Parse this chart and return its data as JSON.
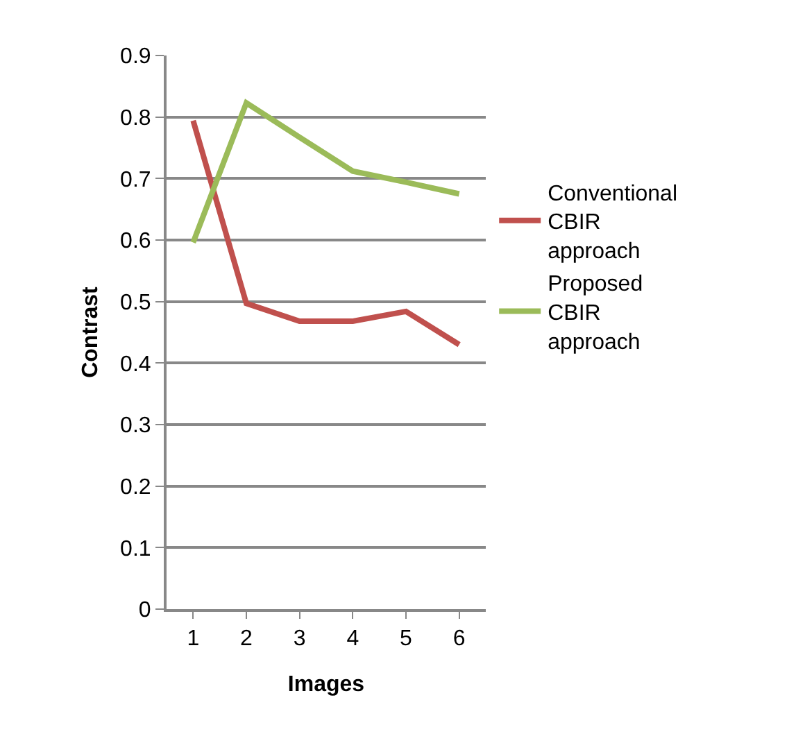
{
  "chart_data": {
    "type": "line",
    "xlabel": "Images",
    "ylabel": "Contrast",
    "categories": [
      "1",
      "2",
      "3",
      "4",
      "5",
      "6"
    ],
    "series": [
      {
        "name": "Conventional CBIR approach",
        "color": "#c0504d",
        "values": [
          0.794,
          0.497,
          0.468,
          0.468,
          0.484,
          0.43
        ]
      },
      {
        "name": "Proposed CBIR approach",
        "color": "#9bbb59",
        "values": [
          0.596,
          0.823,
          0.767,
          0.712,
          0.694,
          0.675
        ]
      }
    ],
    "ylim": [
      0,
      0.9
    ],
    "yticks": [
      0,
      0.1,
      0.2,
      0.3,
      0.4,
      0.5,
      0.6,
      0.7,
      0.8,
      0.9
    ],
    "grid": "y",
    "legend": "right",
    "marker": "none",
    "line_style": "solid"
  }
}
